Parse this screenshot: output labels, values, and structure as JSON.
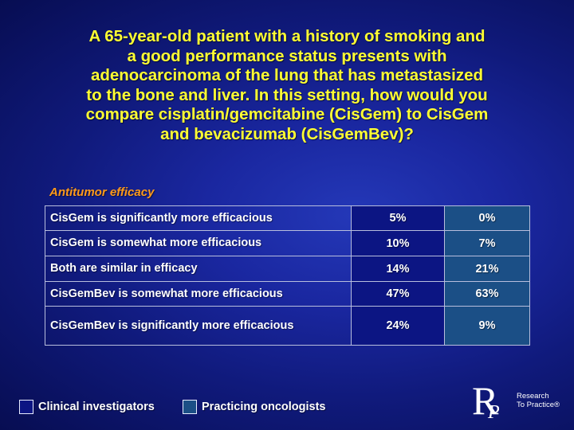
{
  "slide": {
    "title_lines": [
      "A 65-year-old patient with a history of smoking and",
      "a good performance status presents with",
      "adenocarcinoma of the lung that has metastasized",
      "to the bone and liver. In this setting, how would you",
      "compare cisplatin/gemcitabine (CisGem) to CisGem",
      "and bevacizumab (CisGemBev)?"
    ],
    "section_label": "Antitumor efficacy"
  },
  "table": {
    "rows": [
      {
        "label": "CisGem is significantly more efficacious",
        "clinical_investigators": "5%",
        "practicing_oncologists": "0%"
      },
      {
        "label": "CisGem is somewhat more efficacious",
        "clinical_investigators": "10%",
        "practicing_oncologists": "7%"
      },
      {
        "label": "Both are similar in efficacy",
        "clinical_investigators": "14%",
        "practicing_oncologists": "21%"
      },
      {
        "label": "CisGemBev is somewhat more efficacious",
        "clinical_investigators": "47%",
        "practicing_oncologists": "63%"
      },
      {
        "label": "CisGemBev is significantly more efficacious",
        "clinical_investigators": "24%",
        "practicing_oncologists": "9%"
      }
    ]
  },
  "legend": {
    "clinical_investigators": {
      "label": "Clinical investigators",
      "color": "#0c1583"
    },
    "practicing_oncologists": {
      "label": "Practicing oncologists",
      "color": "#1b4f86"
    }
  },
  "logo": {
    "letter_r": "R",
    "letter_p": "P",
    "line1": "Research",
    "line2": "To Practice®"
  },
  "colors": {
    "title": "#ffff33",
    "section_label": "#ff9a1a",
    "background": "#101a7c"
  }
}
